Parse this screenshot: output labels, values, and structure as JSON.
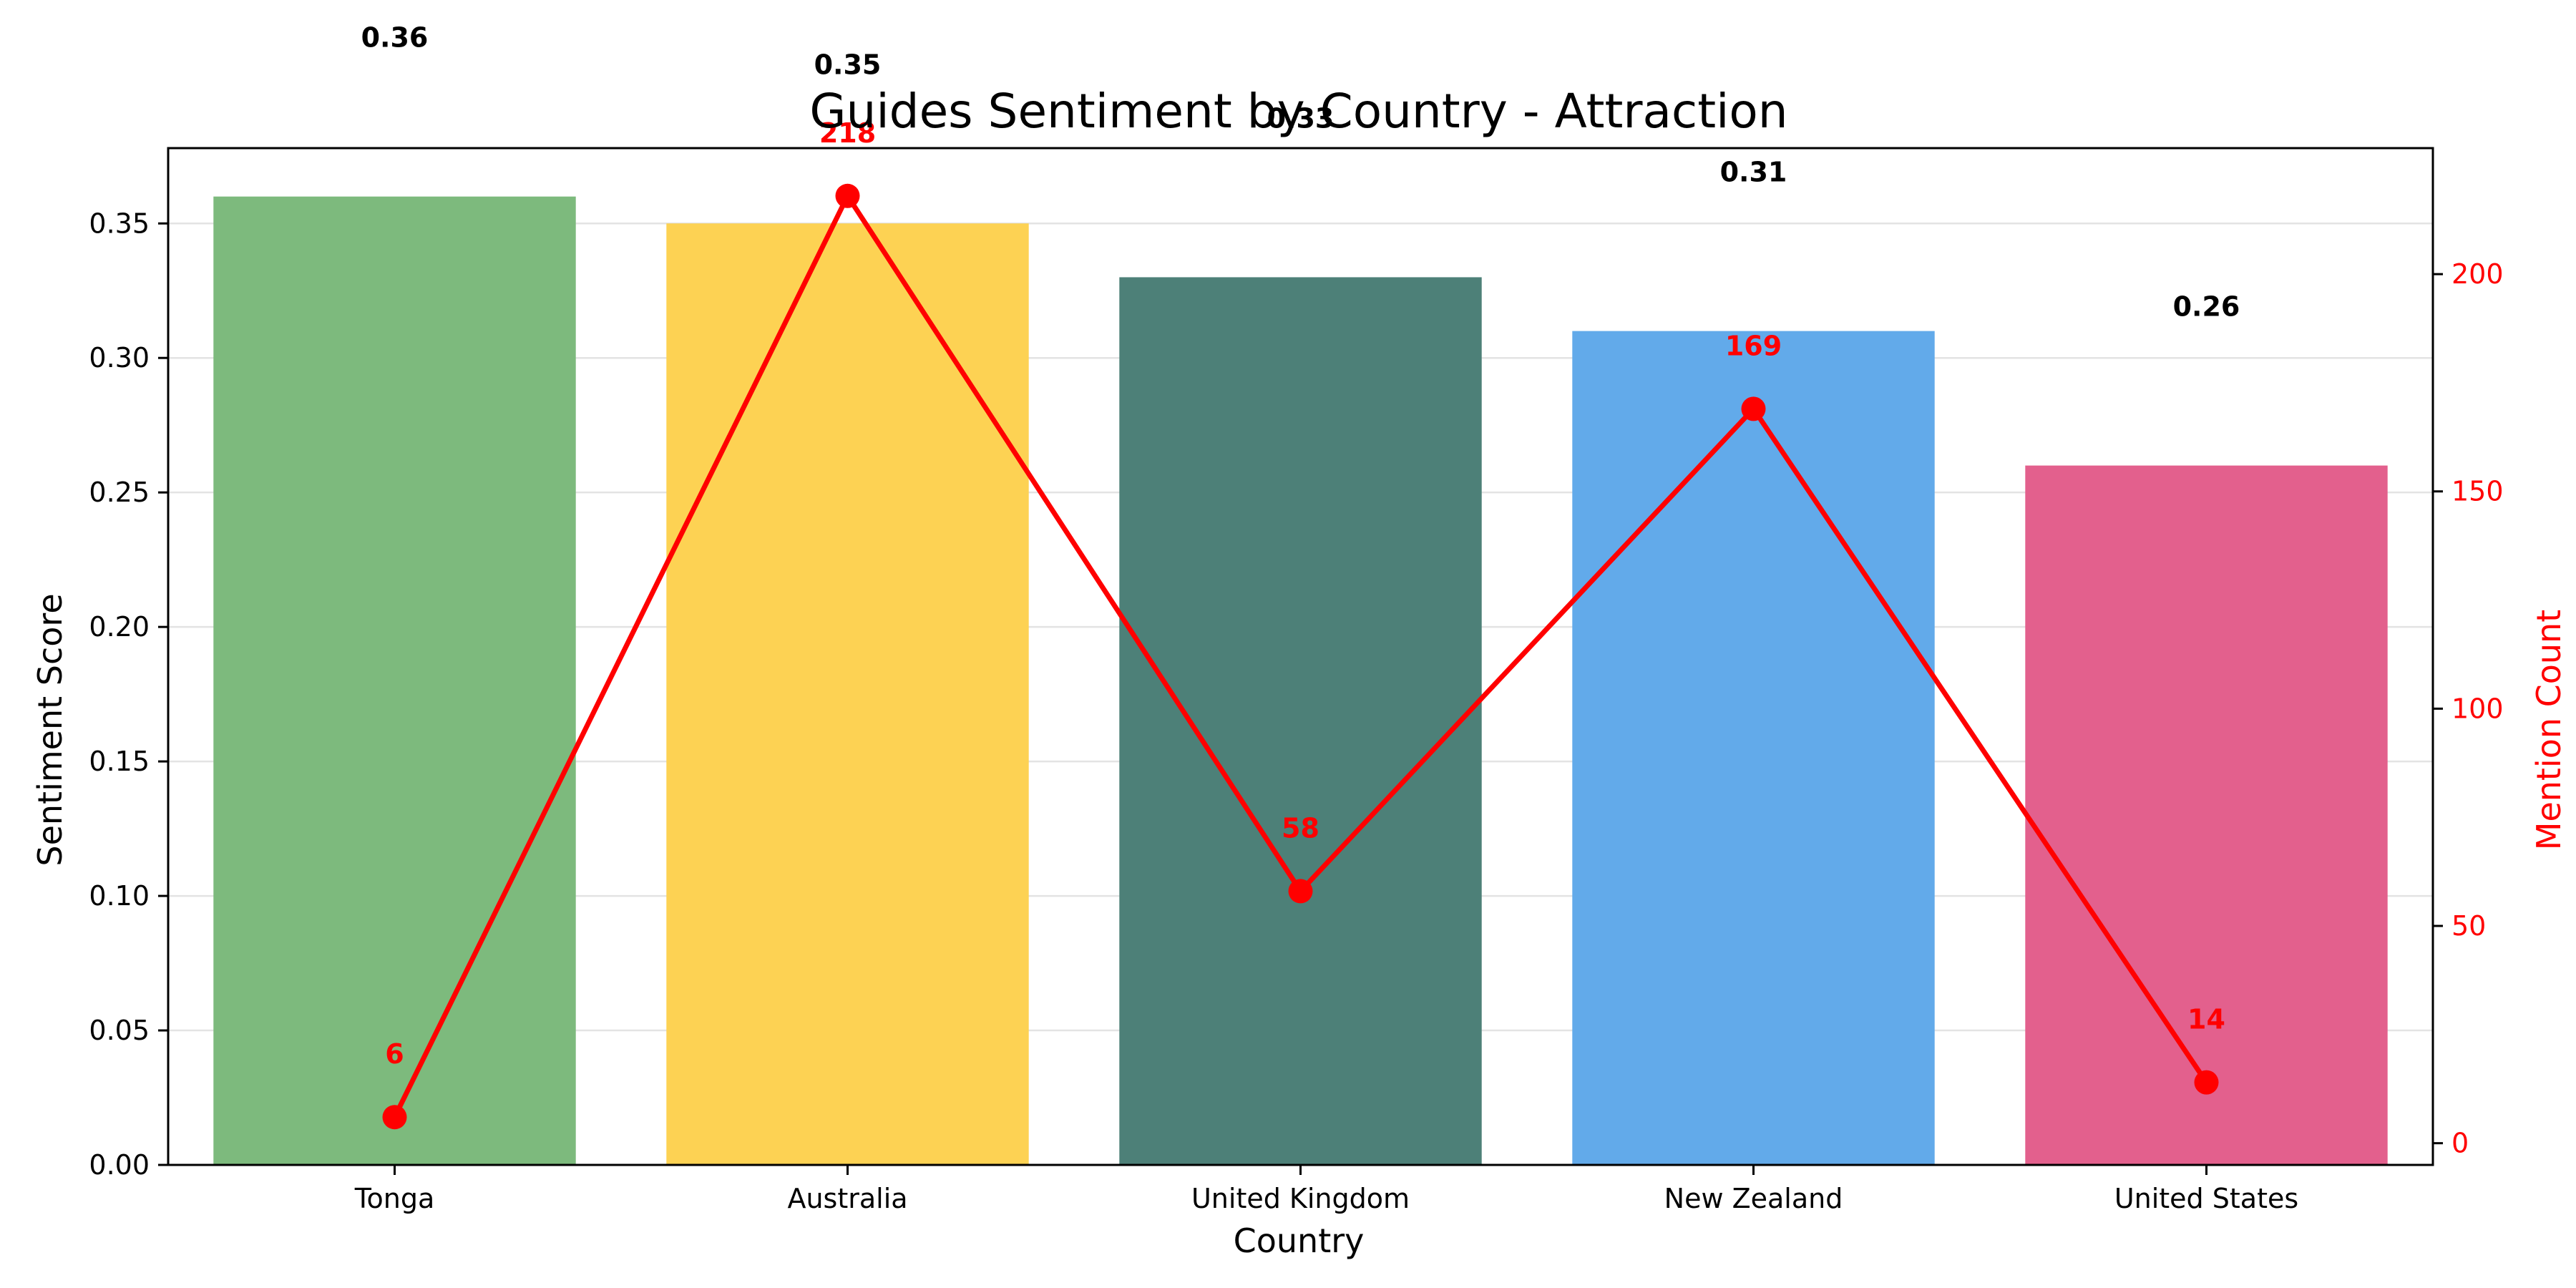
{
  "chart_data": {
    "type": "bar",
    "title": "Guides Sentiment by Country - Attraction",
    "xlabel": "Country",
    "ylabel": "Sentiment Score",
    "y2label": "Mention Count",
    "categories": [
      "Tonga",
      "Australia",
      "United Kingdom",
      "New Zealand",
      "United States"
    ],
    "series": [
      {
        "type": "bar",
        "values": [
          0.36,
          0.35,
          0.33,
          0.31,
          0.26
        ],
        "value_labels": [
          "0.36",
          "0.35",
          "0.33",
          "0.31",
          "0.26"
        ],
        "colors": [
          "#7dba7d",
          "#fdd253",
          "#4d8078",
          "#62aaea",
          "#e3608d"
        ]
      },
      {
        "type": "line",
        "axis": "right",
        "values": [
          6,
          218,
          58,
          169,
          14
        ],
        "value_labels": [
          "6",
          "218",
          "58",
          "169",
          "14"
        ],
        "color": "#ff0000"
      }
    ],
    "ylim": [
      0,
      0.378
    ],
    "yticks": [
      0.0,
      0.05,
      0.1,
      0.15,
      0.2,
      0.25,
      0.3,
      0.35
    ],
    "ytick_labels": [
      "0.00",
      "0.05",
      "0.10",
      "0.15",
      "0.20",
      "0.25",
      "0.30",
      "0.35"
    ],
    "y2lim": [
      -5,
      229
    ],
    "y2ticks": [
      0,
      50,
      100,
      150,
      200
    ],
    "y2tick_labels": [
      "0",
      "50",
      "100",
      "150",
      "200"
    ],
    "grid": "horizontal"
  }
}
